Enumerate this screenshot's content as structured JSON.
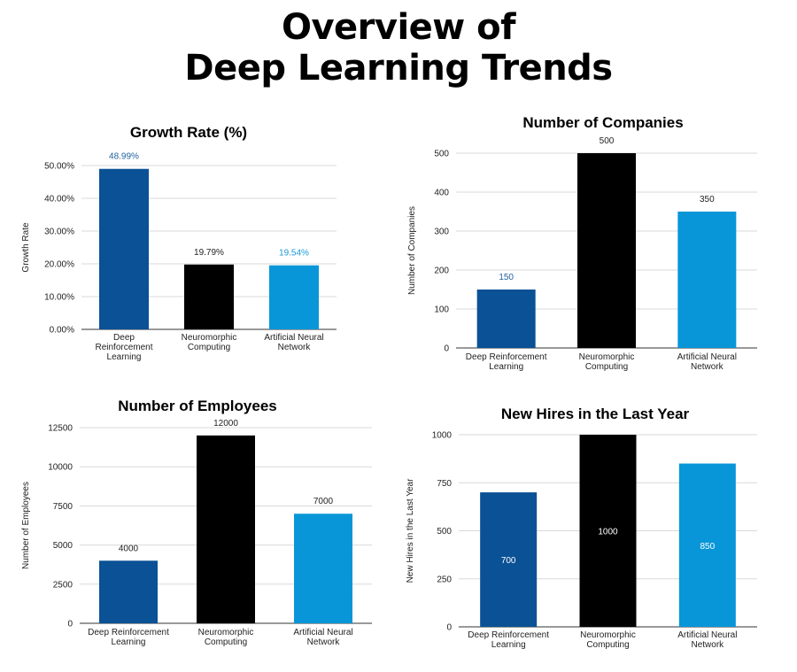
{
  "page": {
    "title_line1": "Overview of",
    "title_line2": "Deep Learning Trends"
  },
  "colors": {
    "deep_blue": "#0a5196",
    "black": "#000000",
    "light_blue": "#0896d8"
  },
  "chart_data": [
    {
      "id": "growth",
      "type": "bar",
      "title": "Growth Rate (%)",
      "ylabel": "Growth Rate",
      "xlabel": "",
      "categories": [
        "Deep Reinforcement Learning",
        "Neuromorphic Computing",
        "Artificial Neural Network"
      ],
      "values": [
        48.99,
        19.79,
        19.54
      ],
      "data_labels": [
        "48.99%",
        "19.79%",
        "19.54%"
      ],
      "ylim": [
        0,
        50
      ],
      "yticks": [
        0,
        10,
        20,
        30,
        40,
        50
      ],
      "ytick_labels": [
        "0.00%",
        "10.00%",
        "20.00%",
        "30.00%",
        "40.00%",
        "50.00%"
      ],
      "grid": true,
      "label_position": "above"
    },
    {
      "id": "companies",
      "type": "bar",
      "title": "Number of Companies",
      "ylabel": "Number of Companies",
      "xlabel": "",
      "categories": [
        "Deep Reinforcement Learning",
        "Neuromorphic Computing",
        "Artificial Neural Network"
      ],
      "values": [
        150,
        500,
        350
      ],
      "data_labels": [
        "150",
        "500",
        "350"
      ],
      "ylim": [
        0,
        500
      ],
      "yticks": [
        0,
        100,
        200,
        300,
        400,
        500
      ],
      "ytick_labels": [
        "0",
        "100",
        "200",
        "300",
        "400",
        "500"
      ],
      "grid": true,
      "label_position": "above"
    },
    {
      "id": "employees",
      "type": "bar",
      "title": "Number of Employees",
      "ylabel": "Number of Employees",
      "xlabel": "",
      "categories": [
        "Deep Reinforcement Learning",
        "Neuromorphic Computing",
        "Artificial Neural Network"
      ],
      "values": [
        4000,
        12000,
        7000
      ],
      "data_labels": [
        "4000",
        "12000",
        "7000"
      ],
      "ylim": [
        0,
        12500
      ],
      "yticks": [
        0,
        2500,
        5000,
        7500,
        10000,
        12500
      ],
      "ytick_labels": [
        "0",
        "2500",
        "5000",
        "7500",
        "10000",
        "12500"
      ],
      "grid": true,
      "label_position": "above"
    },
    {
      "id": "hires",
      "type": "bar",
      "title": "New Hires in the Last Year",
      "ylabel": "New Hires in the Last Year",
      "xlabel": "",
      "categories": [
        "Deep Reinforcement Learning",
        "Neuromorphic Computing",
        "Artificial Neural Network"
      ],
      "values": [
        700,
        1000,
        850
      ],
      "data_labels": [
        "700",
        "1000",
        "850"
      ],
      "ylim": [
        0,
        1000
      ],
      "yticks": [
        0,
        250,
        500,
        750,
        1000
      ],
      "ytick_labels": [
        "0",
        "250",
        "500",
        "750",
        "1000"
      ],
      "grid": true,
      "label_position": "inside"
    }
  ]
}
